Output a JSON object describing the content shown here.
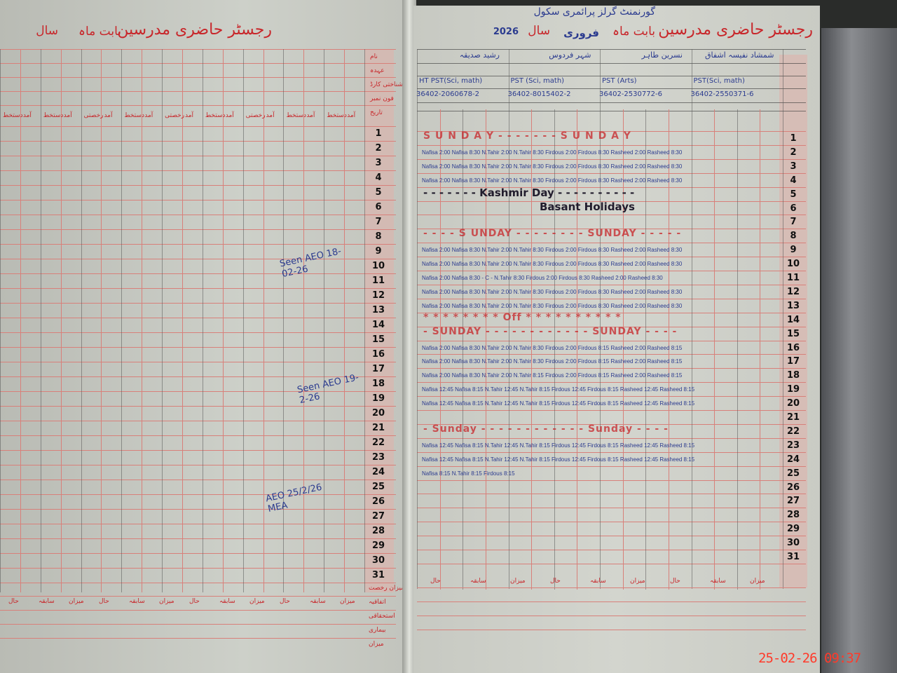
{
  "left_page": {
    "title": "رجسٹر حاضری مدرسین",
    "month_label": "بابت ماہ",
    "year_label": "سال",
    "column_headers": [
      "آمد",
      "دستخط",
      "آمد",
      "دستخط",
      "آمد",
      "رخصتی",
      "آمد",
      "دستخط",
      "آمد",
      "رخصتی",
      "آمد",
      "دستخط",
      "آمد",
      "رخصتی",
      "آمد",
      "دستخط",
      "آمد",
      "دستخط"
    ],
    "side_labels": [
      "نام",
      "عہدہ",
      "شناختی کارڈ",
      "فون نمبر",
      "تاریخ"
    ],
    "footer_labels": [
      "میزان",
      "سابقہ",
      "حال",
      "میزان",
      "سابقہ",
      "حال",
      "میزان",
      "سابقہ",
      "حال",
      "میزان",
      "سابقہ",
      "حال"
    ],
    "footer_row_labels": [
      "میزان رخصت",
      "اتفاقیہ",
      "استحقاقی",
      "بیماری",
      "میزان"
    ],
    "signatures": [
      {
        "text": "Seen AEO 18-02-26"
      },
      {
        "text": "Seen AEO 19-2-26"
      },
      {
        "text": "AEO 25/2/26 MEA"
      }
    ]
  },
  "right_page": {
    "title": "رجسٹر حاضری مدرسین",
    "school": "گورنمنٹ گرلز پرائمری سکول",
    "month_label": "بابت ماہ",
    "month_value": "فروری",
    "year_label": "سال",
    "year_value": "2026",
    "teachers": [
      {
        "name": "شمشاد نفیسہ اشفاق",
        "designation": "PST(Sci, math)",
        "cnic": "36402-2550371-6"
      },
      {
        "name": "نسرین طاہر",
        "designation": "PST (Arts)",
        "cnic": "36402-2530772-6"
      },
      {
        "name": "شہر فردوس",
        "designation": "PST (Sci, math)",
        "cnic": "36402-8015402-2"
      },
      {
        "name": "رشید صدیقہ",
        "designation": "HT PST(Sci, math)",
        "cnic": "36402-2060678-2"
      }
    ],
    "annotations": [
      {
        "date": 1,
        "text": "S U N D A Y - - - - - - - S U N D A Y",
        "style": "red"
      },
      {
        "date": 5,
        "text": "- - - - - - - Kashmir      Day - - - - - - - - - -",
        "style": "dark"
      },
      {
        "date": 6,
        "text": "Basant        Holidays",
        "style": "dark"
      },
      {
        "date": 8,
        "text": "- - - - S UNDAY - - - - - - - - SUNDAY - - - - -",
        "style": "red"
      },
      {
        "date": 14,
        "text": "* * * * * * * *     Off * * * *          * * * * * *",
        "style": "red"
      },
      {
        "date": 15,
        "text": "- SUNDAY - - - - - - - - - - - - SUNDAY - - - -",
        "style": "red"
      },
      {
        "date": 22,
        "text": "- Sunday - - - - - - - - - - - - Sunday - - - -",
        "style": "red"
      }
    ],
    "entries": [
      {
        "date": 2,
        "text": "Nafisa 2:00  Nafisa 8:30  N.Tahir 2:00  N.Tahir 8:30  Firdous 2:00  Firdous 8:30  Rasheed 2:00  Rasheed 8:30"
      },
      {
        "date": 3,
        "text": "Nafisa 2:00  Nafisa 8:30  N.Tahir 2:00  N.Tahir 8:30  Firdous 2:00  Firdous 8:30  Rasheed 2:00  Rasheed 8:30"
      },
      {
        "date": 4,
        "text": "Nafisa 2:00  Nafisa 8:30  N.Tahir 2:00  N.Tahir 8:30  Firdous 2:00  Firdous 8:30  Rasheed 2:00  Rasheed 8:30"
      },
      {
        "date": 9,
        "text": "Nafisa 2:00  Nafisa 8:30  N.Tahir 2:00  N.Tahir 8:30  Firdous 2:00  Firdous 8:30  Rasheed 2:00  Rasheed 8:30"
      },
      {
        "date": 10,
        "text": "Nafisa 2:00  Nafisa 8:30  N.Tahir 2:00  N.Tahir 8:30  Firdous 2:00  Firdous 8:30  Rasheed 2:00  Rasheed 8:30"
      },
      {
        "date": 11,
        "text": "Nafisa 2:00  Nafisa 8:30  - C -  N.Tahir 8:30  Firdous 2:00  Firdous 8:30  Rasheed 2:00  Rasheed 8:30"
      },
      {
        "date": 12,
        "text": "Nafisa 2:00  Nafisa 8:30  N.Tahir 2:00  N.Tahir 8:30  Firdous 2:00  Firdous 8:30  Rasheed 2:00  Rasheed 8:30"
      },
      {
        "date": 13,
        "text": "Nafisa 2:00  Nafisa 8:30  N.Tahir 2:00  N.Tahir 8:30  Firdous 2:00  Firdous 8:30  Rasheed 2:00  Rasheed 8:30"
      },
      {
        "date": 16,
        "text": "Nafisa 2:00  Nafisa 8:30  N.Tahir 2:00  N.Tahir 8:30  Firdous 2:00  Firdous 8:15  Rasheed 2:00  Rasheed 8:15"
      },
      {
        "date": 17,
        "text": "Nafisa 2:00  Nafisa 8:30  N.Tahir 2:00  N.Tahir 8:30  Firdous 2:00  Firdous 8:15  Rasheed 2:00  Rasheed 8:15"
      },
      {
        "date": 18,
        "text": "Nafisa 2:00  Nafisa 8:30  N.Tahir 2:00  N.Tahir 8:15  Firdous 2:00  Firdous 8:15  Rasheed 2:00  Rasheed 8:15"
      },
      {
        "date": 19,
        "text": "Nafisa 12:45  Nafisa 8:15  N.Tahir 12:45  N.Tahir 8:15  Firdous 12:45  Firdous 8:15  Rasheed 12:45  Rasheed 8:15"
      },
      {
        "date": 20,
        "text": "Nafisa 12:45  Nafisa 8:15  N.Tahir 12:45  N.Tahir 8:15  Firdous 12:45  Firdous 8:15  Rasheed 12:45  Rasheed 8:15"
      },
      {
        "date": 23,
        "text": "Nafisa 12:45  Nafisa 8:15  N.Tahir 12:45  N.Tahir 8:15  Firdous 12:45  Firdous 8:15  Rasheed 12:45  Rasheed 8:15"
      },
      {
        "date": 24,
        "text": "Nafisa 12:45  Nafisa 8:15  N.Tahir 12:45  N.Tahir 8:15  Firdous 12:45  Firdous 8:15  Rasheed 12:45  Rasheed 8:15"
      },
      {
        "date": 25,
        "text": "Nafisa 8:15  N.Tahir 8:15  Firdous 8:15"
      }
    ],
    "footer_labels": [
      "میزان",
      "سابقہ",
      "حال",
      "میزان",
      "سابقہ",
      "حال",
      "میزان",
      "سابقہ",
      "حال"
    ]
  },
  "row_numbers": [
    "1",
    "2",
    "3",
    "4",
    "5",
    "6",
    "7",
    "8",
    "9",
    "10",
    "11",
    "12",
    "13",
    "14",
    "15",
    "16",
    "17",
    "18",
    "19",
    "20",
    "21",
    "22",
    "23",
    "24",
    "25",
    "26",
    "27",
    "28",
    "29",
    "30",
    "31"
  ],
  "timestamp": "25-02-26  09:37",
  "colors": {
    "print_red": "#c8262a",
    "ink_blue": "#2b3b8f",
    "paper": "#c8cac3",
    "timestamp": "#ff3a2a"
  }
}
